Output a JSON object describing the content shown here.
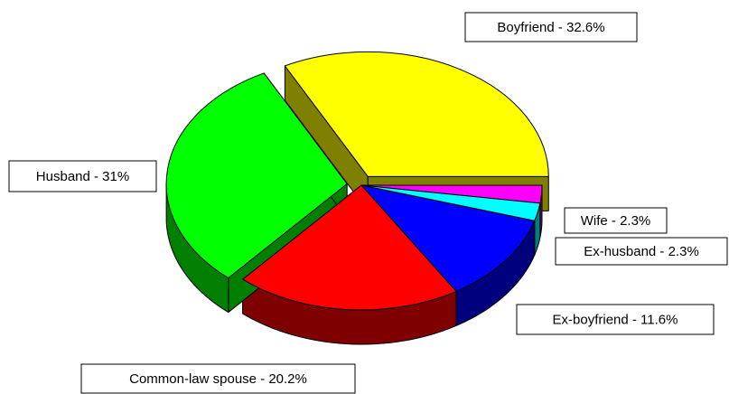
{
  "chart_data": {
    "type": "pie",
    "values": [
      32.6,
      2.3,
      2.3,
      11.6,
      20.2,
      31
    ],
    "value_labels": [
      "Boyfriend - 32.6%",
      "Wife - 2.3%",
      "Ex-husband - 2.3%",
      "Ex-boyfriend - 11.6%",
      "Common-law spouse - 20.2%",
      "Husband - 31%"
    ],
    "colors": [
      "#ffff00",
      "#ff00ff",
      "#00ffff",
      "#0000ff",
      "#ff0000",
      "#00ff00"
    ]
  }
}
